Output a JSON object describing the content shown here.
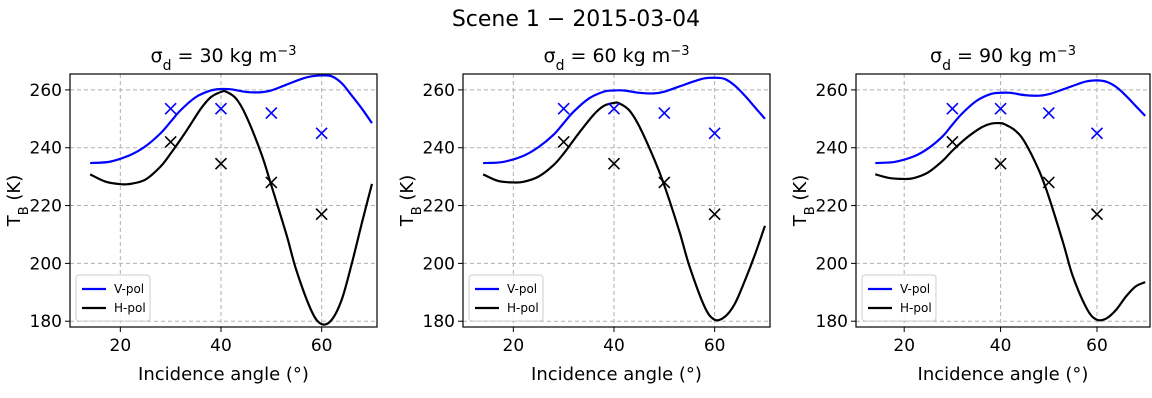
{
  "figure": {
    "title": "Scene 1 − 2015-03-04",
    "colors": {
      "V-pol": "#0000ff",
      "H-pol": "#000000"
    }
  },
  "chart_data": [
    {
      "type": "line",
      "title_prefix": "σ",
      "title_sub": "d",
      "title_rest": " = 30 kg m",
      "title_sup": "−3",
      "xlabel": "Incidence angle (°)",
      "ylabel_main": "T",
      "ylabel_sub": "B",
      "ylabel_rest": " (K)",
      "xlim": [
        10,
        71
      ],
      "ylim": [
        178,
        265.5
      ],
      "xticks": [
        20,
        40,
        60
      ],
      "yticks": [
        180,
        200,
        220,
        240,
        260
      ],
      "grid": true,
      "legend_position": "lower left",
      "series": [
        {
          "name": "V-pol",
          "color": "#0000ff",
          "x": [
            14,
            18,
            22,
            25,
            28,
            30,
            32,
            35,
            38,
            40,
            42,
            45,
            48,
            50,
            53,
            56,
            58,
            60,
            62,
            64,
            66,
            68,
            70
          ],
          "y": [
            234.7,
            235.2,
            237.5,
            240.5,
            245,
            249,
            253,
            257.5,
            259.8,
            260.3,
            260.2,
            259.3,
            259.2,
            259.8,
            261.8,
            263.8,
            264.7,
            265,
            264.7,
            262.3,
            258,
            253.5,
            248.5
          ]
        },
        {
          "name": "H-pol",
          "color": "#000000",
          "x": [
            14,
            17,
            20,
            22,
            25,
            28,
            30,
            33,
            36,
            38,
            40,
            41,
            43,
            45,
            48,
            50,
            53,
            55,
            58,
            60,
            62,
            64,
            66,
            68,
            70
          ],
          "y": [
            230.8,
            228.3,
            227.4,
            227.5,
            229,
            233.5,
            238,
            245.5,
            253.5,
            257.5,
            259.3,
            259.4,
            257,
            251,
            238,
            227,
            210,
            197.5,
            183.5,
            179,
            180.5,
            187.5,
            200,
            214,
            227.5
          ]
        },
        {
          "name": "V-pol observed",
          "color": "#0000ff",
          "marker": "x",
          "x": [
            30,
            40,
            50,
            60
          ],
          "y": [
            253.5,
            253.5,
            252,
            245
          ]
        },
        {
          "name": "H-pol observed",
          "color": "#000000",
          "marker": "x",
          "x": [
            30,
            40,
            50,
            60
          ],
          "y": [
            242,
            234.5,
            228,
            217
          ]
        }
      ]
    },
    {
      "type": "line",
      "title_prefix": "σ",
      "title_sub": "d",
      "title_rest": " = 60 kg m",
      "title_sup": "−3",
      "xlabel": "Incidence angle (°)",
      "ylabel_main": "T",
      "ylabel_sub": "B",
      "ylabel_rest": " (K)",
      "xlim": [
        10,
        71
      ],
      "ylim": [
        178,
        265.5
      ],
      "xticks": [
        20,
        40,
        60
      ],
      "yticks": [
        180,
        200,
        220,
        240,
        260
      ],
      "grid": true,
      "legend_position": "lower left",
      "series": [
        {
          "name": "V-pol",
          "color": "#0000ff",
          "x": [
            14,
            18,
            22,
            25,
            28,
            30,
            32,
            35,
            38,
            40,
            42,
            45,
            48,
            50,
            53,
            56,
            58,
            60,
            62,
            64,
            66,
            68,
            70
          ],
          "y": [
            234.7,
            235.1,
            237.2,
            240.2,
            244.5,
            248.5,
            252.5,
            257,
            259.4,
            259.8,
            259.8,
            259,
            258.8,
            259.4,
            261.2,
            263,
            264,
            264.2,
            263.8,
            261.5,
            258,
            254,
            250
          ]
        },
        {
          "name": "H-pol",
          "color": "#000000",
          "x": [
            14,
            17,
            20,
            22,
            25,
            28,
            30,
            33,
            36,
            38,
            40,
            41,
            43,
            45,
            48,
            50,
            53,
            55,
            58,
            60,
            62,
            64,
            66,
            68,
            70
          ],
          "y": [
            230.8,
            228.5,
            228,
            228.2,
            230,
            234,
            238,
            245,
            251.5,
            254.5,
            255.5,
            255.4,
            253,
            247.5,
            236,
            227,
            211,
            199,
            185,
            180.5,
            181.5,
            186,
            194,
            203,
            213
          ]
        },
        {
          "name": "V-pol observed",
          "color": "#0000ff",
          "marker": "x",
          "x": [
            30,
            40,
            50,
            60
          ],
          "y": [
            253.5,
            253.5,
            252,
            245
          ]
        },
        {
          "name": "H-pol observed",
          "color": "#000000",
          "marker": "x",
          "x": [
            30,
            40,
            50,
            60
          ],
          "y": [
            242,
            234.5,
            228,
            217
          ]
        }
      ]
    },
    {
      "type": "line",
      "title_prefix": "σ",
      "title_sub": "d",
      "title_rest": " = 90 kg m",
      "title_sup": "−3",
      "xlabel": "Incidence angle (°)",
      "ylabel_main": "T",
      "ylabel_sub": "B",
      "ylabel_rest": " (K)",
      "xlim": [
        10,
        71
      ],
      "ylim": [
        178,
        265.5
      ],
      "xticks": [
        20,
        40,
        60
      ],
      "yticks": [
        180,
        200,
        220,
        240,
        260
      ],
      "grid": true,
      "legend_position": "lower left",
      "series": [
        {
          "name": "V-pol",
          "color": "#0000ff",
          "x": [
            14,
            18,
            22,
            25,
            28,
            30,
            32,
            35,
            38,
            40,
            42,
            45,
            48,
            50,
            53,
            56,
            58,
            60,
            62,
            64,
            66,
            68,
            70
          ],
          "y": [
            234.7,
            235.1,
            237,
            239.8,
            244,
            248,
            251.8,
            256.2,
            258.6,
            259,
            259,
            258.2,
            258,
            258.5,
            260.2,
            262,
            263,
            263.3,
            262.8,
            261,
            258,
            254.5,
            251
          ]
        },
        {
          "name": "H-pol",
          "color": "#000000",
          "x": [
            14,
            17,
            20,
            22,
            25,
            28,
            30,
            33,
            36,
            38,
            40,
            41,
            43,
            45,
            48,
            50,
            53,
            55,
            58,
            60,
            62,
            64,
            66,
            68,
            70
          ],
          "y": [
            230.8,
            229.5,
            229.2,
            229.5,
            231.5,
            235.5,
            239,
            243.5,
            247,
            248.3,
            248.5,
            248,
            246,
            242,
            232,
            223,
            207,
            195.5,
            184,
            180.5,
            181,
            184,
            188.5,
            192,
            193.5
          ]
        },
        {
          "name": "V-pol observed",
          "color": "#0000ff",
          "marker": "x",
          "x": [
            30,
            40,
            50,
            60
          ],
          "y": [
            253.5,
            253.5,
            252,
            245
          ]
        },
        {
          "name": "H-pol observed",
          "color": "#000000",
          "marker": "x",
          "x": [
            30,
            40,
            50,
            60
          ],
          "y": [
            242,
            234.5,
            228,
            217
          ]
        }
      ]
    }
  ]
}
